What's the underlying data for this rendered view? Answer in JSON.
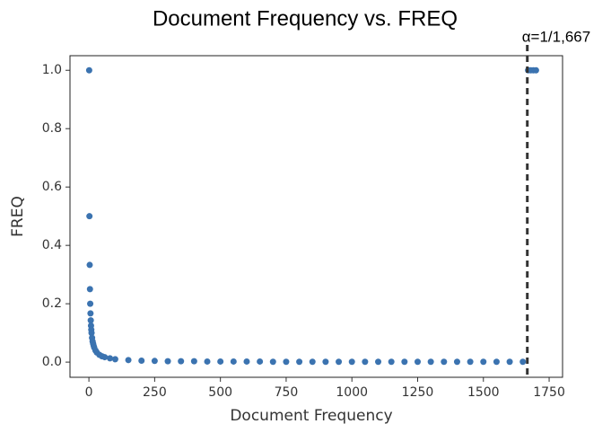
{
  "chart_data": {
    "type": "scatter",
    "title": "Document Frequency vs. FREQ",
    "x_label": "Document Frequency",
    "y_label": "FREQ",
    "annotation": "α=1/1,667",
    "vline": 1667,
    "xlim": [
      -72,
      1801
    ],
    "ylim": [
      -0.052,
      1.05
    ],
    "xticks": [
      0,
      250,
      500,
      750,
      1000,
      1250,
      1500,
      1750
    ],
    "yticks": [
      {
        "value": 0,
        "label": "0.0"
      },
      0.2,
      0.4,
      0.6,
      0.8,
      {
        "value": 1,
        "label": "1.0"
      }
    ],
    "series": [
      {
        "color": "#3b73b0",
        "x": [
          1,
          2,
          3,
          4,
          5,
          6,
          7,
          8,
          9,
          10,
          12,
          14,
          16,
          18,
          20,
          25,
          30,
          40,
          50,
          60,
          80,
          100,
          150,
          200,
          250,
          300,
          350,
          400,
          450,
          500,
          550,
          600,
          650,
          700,
          750,
          800,
          850,
          900,
          950,
          1000,
          1050,
          1100,
          1150,
          1200,
          1250,
          1300,
          1350,
          1400,
          1450,
          1500,
          1550,
          1600,
          1650,
          1670,
          1680,
          1690,
          1700
        ],
        "values": [
          1,
          0.5,
          0.333,
          0.25,
          0.2,
          0.167,
          0.143,
          0.125,
          0.111,
          0.1,
          0.083,
          0.071,
          0.063,
          0.056,
          0.05,
          0.04,
          0.033,
          0.025,
          0.02,
          0.017,
          0.013,
          0.01,
          0.007,
          0.005,
          0.004,
          0.003,
          0.003,
          0.003,
          0.002,
          0.002,
          0.002,
          0.002,
          0.002,
          0.001,
          0.001,
          0.001,
          0.001,
          0.001,
          0.001,
          0.001,
          0.001,
          0.001,
          0.001,
          0.001,
          0.001,
          0.001,
          0.001,
          0.001,
          0.001,
          0.001,
          0.001,
          0.001,
          0.001,
          1,
          1,
          1,
          1
        ]
      }
    ]
  }
}
